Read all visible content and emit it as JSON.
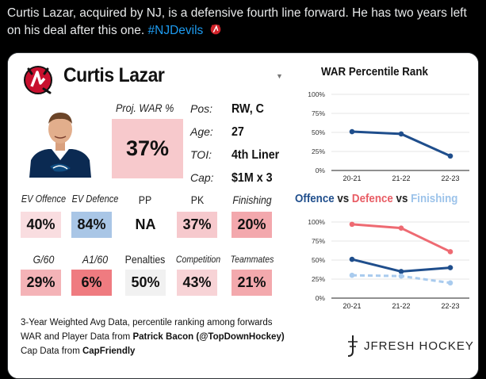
{
  "tweet": {
    "text": "Curtis Lazar, acquired by NJ, is a defensive fourth line forward. He has two years left on his deal after this one. ",
    "hashtag": "#NJDevils"
  },
  "card": {
    "player_name": "Curtis Lazar",
    "proj_war_label": "Proj. WAR %",
    "proj_war_value": "37%",
    "info": [
      {
        "key": "Pos:",
        "value": "RW, C"
      },
      {
        "key": "Age:",
        "value": "27"
      },
      {
        "key": "TOI:",
        "value": "4th Liner"
      },
      {
        "key": "Cap:",
        "value": "$1M x 3"
      }
    ],
    "stats_row1": [
      {
        "label": "EV Offence",
        "value": "40%",
        "color": "#f9dde0"
      },
      {
        "label": "EV Defence",
        "value": "84%",
        "color": "#a9c6e6"
      },
      {
        "label": "PP",
        "value": "NA",
        "color": "#ffffff"
      },
      {
        "label": "PK",
        "value": "37%",
        "color": "#f6c9cd"
      },
      {
        "label": "Finishing",
        "value": "20%",
        "color": "#f3a8ad"
      }
    ],
    "stats_row2": [
      {
        "label": "G/60",
        "value": "29%",
        "color": "#f4b3b7"
      },
      {
        "label": "A1/60",
        "value": "6%",
        "color": "#ef7b80"
      },
      {
        "label": "Penalties",
        "value": "50%",
        "color": "#f1f1f1"
      },
      {
        "label": "Competition",
        "value": "43%",
        "color": "#f7d3d6"
      },
      {
        "label": "Teammates",
        "value": "21%",
        "color": "#f3a9ad"
      }
    ],
    "footnotes": {
      "line1": "3-Year Weighted Avg Data, percentile ranking among forwards",
      "line2_prefix": "WAR and Player Data from ",
      "line2_bold": "Patrick Bacon (@TopDownHockey)",
      "line3_prefix": "Cap Data from ",
      "line3_bold": "CapFriendly"
    },
    "brand": "JFRESH HOCKEY"
  },
  "chart_data": [
    {
      "type": "line",
      "title": "WAR Percentile Rank",
      "categories": [
        "20-21",
        "21-22",
        "22-23"
      ],
      "series": [
        {
          "name": "WAR",
          "values": [
            51,
            48,
            19
          ],
          "color": "#1f4e8c",
          "dashed": false
        }
      ],
      "ylim": [
        0,
        100
      ],
      "yticks": [
        "100%",
        "75%",
        "50%",
        "25%",
        "0%"
      ]
    },
    {
      "type": "line",
      "title_parts": [
        {
          "text": "Offence",
          "color": "#1f4e8c"
        },
        {
          "text": " vs ",
          "color": "#222222"
        },
        {
          "text": "Defence",
          "color": "#e85c64"
        },
        {
          "text": " vs ",
          "color": "#222222"
        },
        {
          "text": "Finishing",
          "color": "#9cc3ea"
        }
      ],
      "categories": [
        "20-21",
        "21-22",
        "22-23"
      ],
      "series": [
        {
          "name": "Offence",
          "values": [
            51,
            35,
            40
          ],
          "color": "#1f4e8c",
          "dashed": false
        },
        {
          "name": "Defence",
          "values": [
            97,
            92,
            61
          ],
          "color": "#ee6a72",
          "dashed": false
        },
        {
          "name": "Finishing",
          "values": [
            30,
            29,
            20
          ],
          "color": "#a9cbee",
          "dashed": true
        }
      ],
      "ylim": [
        0,
        100
      ],
      "yticks": [
        "100%",
        "75%",
        "50%",
        "25%",
        "0%"
      ]
    }
  ]
}
